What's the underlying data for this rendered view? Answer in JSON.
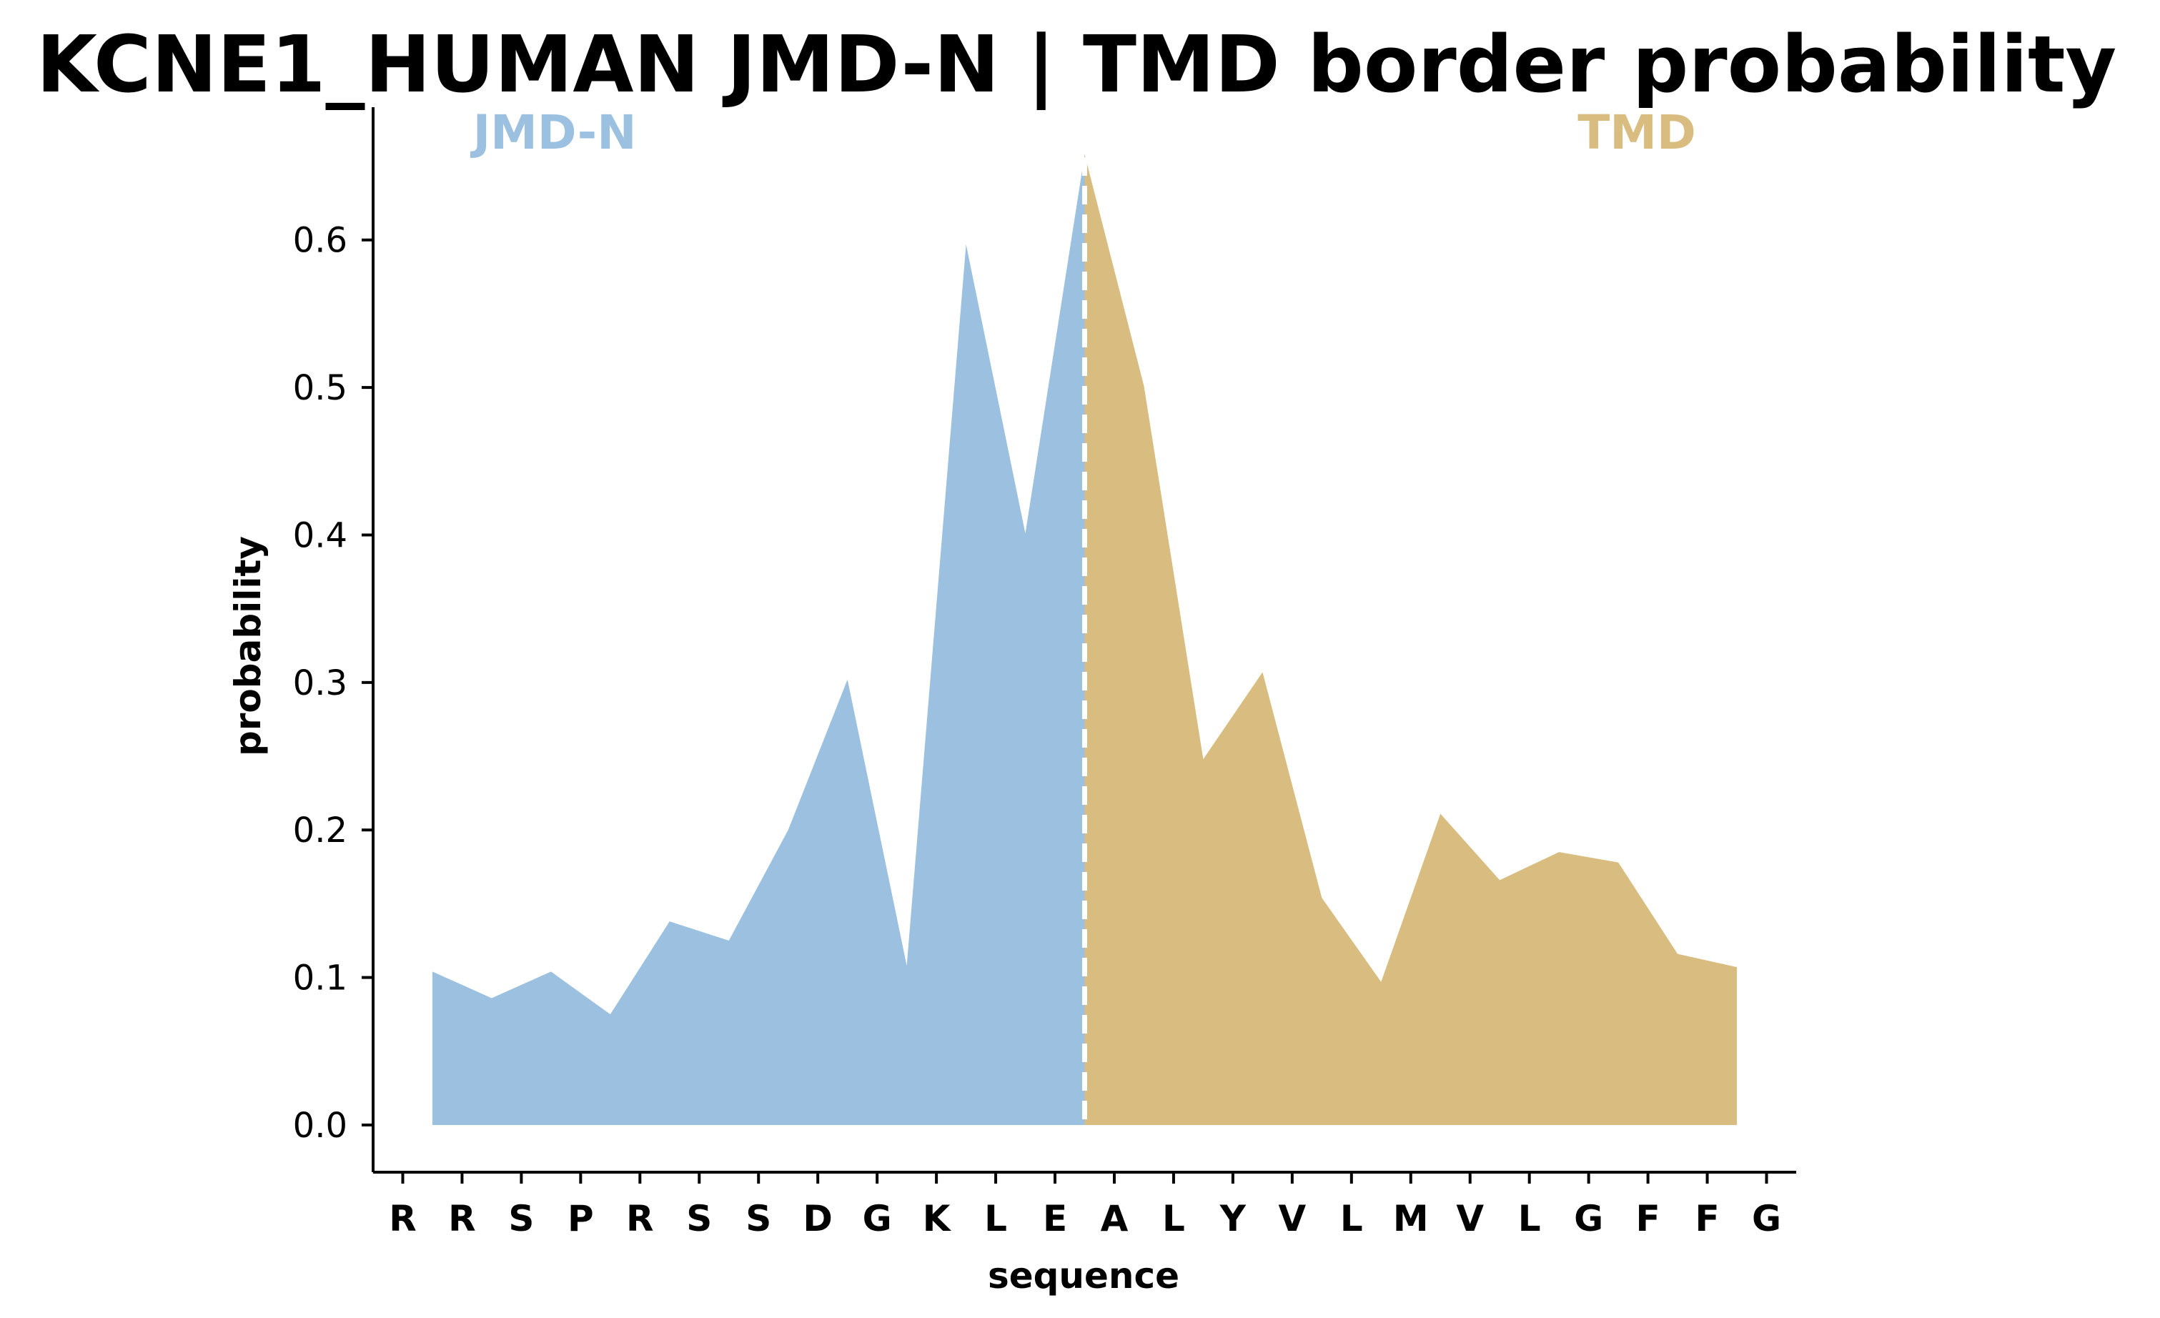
{
  "chart_data": {
    "type": "area",
    "title": "KCNE1_HUMAN JMD-N | TMD border probability",
    "xlabel": "sequence",
    "ylabel": "probability",
    "x_tick_labels": [
      "R",
      "R",
      "S",
      "P",
      "R",
      "S",
      "S",
      "D",
      "G",
      "K",
      "L",
      "E",
      "A",
      "L",
      "Y",
      "V",
      "L",
      "M",
      "V",
      "L",
      "G",
      "F",
      "F",
      "G"
    ],
    "yticks": [
      0.0,
      0.1,
      0.2,
      0.3,
      0.4,
      0.5,
      0.6
    ],
    "ytick_labels": [
      "0.0",
      "0.1",
      "0.2",
      "0.3",
      "0.4",
      "0.5",
      "0.6"
    ],
    "ylim": [
      -0.032,
      0.69
    ],
    "xlim": [
      -0.5,
      23.5
    ],
    "grid": false,
    "border_x": 11.5,
    "border_line_style": "dashed",
    "border_line_color": "#ffffff",
    "series": [
      {
        "name": "JMD-N",
        "color": "#9bc0e0",
        "x": [
          0.5,
          1.5,
          2.5,
          3.5,
          4.5,
          5.5,
          6.5,
          7.5,
          8.5,
          9.5,
          10.5,
          11.5
        ],
        "values": [
          0.104,
          0.086,
          0.104,
          0.075,
          0.138,
          0.125,
          0.2,
          0.302,
          0.108,
          0.597,
          0.401,
          0.658
        ]
      },
      {
        "name": "TMD",
        "color": "#d9bd80",
        "x": [
          11.5,
          12.5,
          13.5,
          14.5,
          15.5,
          16.5,
          17.5,
          18.5,
          19.5,
          20.5,
          21.5,
          22.5
        ],
        "values": [
          0.658,
          0.501,
          0.248,
          0.307,
          0.154,
          0.097,
          0.211,
          0.166,
          0.185,
          0.178,
          0.116,
          0.107
        ]
      }
    ],
    "region_labels": [
      {
        "text": "JMD-N",
        "color": "#9bc0e0",
        "position": "top-left"
      },
      {
        "text": "TMD",
        "color": "#d9bd80",
        "position": "top-right"
      }
    ]
  }
}
